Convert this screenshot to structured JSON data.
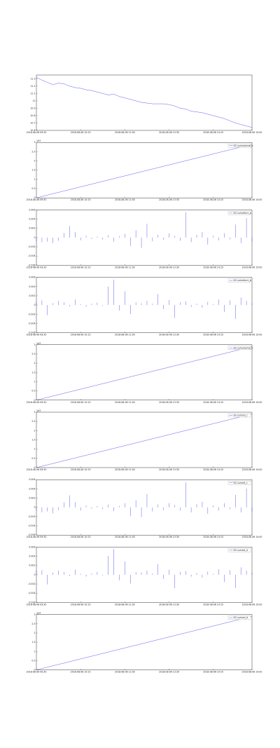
{
  "chart_data": [
    {
      "type": "line",
      "color": "#3333ee",
      "x": [
        0,
        1,
        2,
        3,
        4,
        5,
        6,
        7,
        8,
        9,
        10,
        11,
        12,
        13,
        14,
        15,
        16,
        17,
        18,
        19,
        20,
        21,
        22,
        23,
        24,
        25,
        26,
        27,
        28,
        29,
        30,
        31,
        32,
        33,
        34,
        35,
        36,
        37,
        38,
        39
      ],
      "values": [
        11.32,
        11.28,
        11.25,
        11.22,
        11.24,
        11.23,
        11.2,
        11.18,
        11.17,
        11.15,
        11.14,
        11.12,
        11.1,
        11.08,
        11.09,
        11.06,
        11.04,
        11.02,
        11.0,
        10.98,
        10.97,
        10.96,
        10.96,
        10.96,
        10.95,
        10.93,
        10.9,
        10.89,
        10.86,
        10.85,
        10.84,
        10.82,
        10.8,
        10.78,
        10.76,
        10.73,
        10.7,
        10.68,
        10.66,
        10.64
      ],
      "xlim": [
        0,
        39
      ],
      "xticks": [
        {
          "value": 0,
          "label": "2018-08-06 09:30"
        },
        {
          "value": 8,
          "label": "2018-08-06 10:15"
        },
        {
          "value": 16,
          "label": "2018-08-06 11:00"
        },
        {
          "value": 24,
          "label": "2018-08-06 13:30"
        },
        {
          "value": 32,
          "label": "2018-08-06 14:15"
        },
        {
          "value": 39,
          "label": "2018-08-06 15:00"
        }
      ],
      "ylim": [
        10.6,
        11.35
      ],
      "yticks": [
        10.6,
        10.7,
        10.8,
        10.9,
        11.0,
        11.1,
        11.2,
        11.3
      ]
    },
    {
      "type": "line",
      "color": "#3333ee",
      "name": "SG sumvolume_a",
      "offset_text": "1e3",
      "x": [
        0,
        39
      ],
      "values": [
        0,
        2.9
      ],
      "xlim": [
        0,
        39
      ],
      "xticks": [
        {
          "value": 0,
          "label": "2018-08-06 09:30"
        },
        {
          "value": 8,
          "label": "2018-08-06 10:15"
        },
        {
          "value": 16,
          "label": "2018-08-06 11:00"
        },
        {
          "value": 24,
          "label": "2018-08-06 13:30"
        },
        {
          "value": 32,
          "label": "2018-08-06 14:15"
        },
        {
          "value": 39,
          "label": "2018-08-06 15:00"
        }
      ],
      "ylim": [
        0,
        3.0
      ],
      "yticks": [
        0,
        0.5,
        1.0,
        1.5,
        2.0,
        2.5,
        3.0
      ]
    },
    {
      "type": "bar",
      "color": "#3333ee",
      "name": "SG sumreturn_a",
      "x": [
        0,
        1,
        2,
        3,
        4,
        5,
        6,
        7,
        8,
        9,
        10,
        11,
        12,
        13,
        14,
        15,
        16,
        17,
        18,
        19,
        20,
        21,
        22,
        23,
        24,
        25,
        26,
        27,
        28,
        29,
        30,
        31,
        32,
        33,
        34,
        35,
        36,
        37,
        38,
        39
      ],
      "values": [
        -0.0008,
        -0.001,
        -0.0009,
        -0.0012,
        -0.0007,
        0.001,
        0.0025,
        0.0012,
        -0.0006,
        0.0004,
        -0.0003,
        0.0002,
        -0.0004,
        0.0005,
        -0.0009,
        0.0003,
        0.0008,
        -0.0018,
        0.0016,
        -0.0022,
        0.003,
        -0.0008,
        0.0006,
        -0.0005,
        0.0009,
        0.0004,
        -0.0007,
        0.0055,
        -0.001,
        0.0006,
        0.0012,
        -0.0015,
        0.0004,
        -0.0006,
        0.0009,
        -0.0004,
        0.0028,
        -0.0012,
        0.0042,
        -0.0009
      ],
      "xlim": [
        0,
        39
      ],
      "xticks": [
        {
          "value": 0,
          "label": "2018-08-06 09:30"
        },
        {
          "value": 8,
          "label": "2018-08-06 10:15"
        },
        {
          "value": 16,
          "label": "2018-08-06 11:00"
        },
        {
          "value": 24,
          "label": "2018-08-06 13:30"
        },
        {
          "value": 32,
          "label": "2018-08-06 14:15"
        },
        {
          "value": 39,
          "label": "2018-08-06 15:00"
        }
      ],
      "ylim": [
        -0.006,
        0.006
      ],
      "yticks": [
        -0.006,
        -0.004,
        -0.002,
        0,
        0.002,
        0.004,
        0.006
      ]
    },
    {
      "type": "bar",
      "color": "#3333ee",
      "name": "SG sumreturn_b",
      "x": [
        0,
        1,
        2,
        3,
        4,
        5,
        6,
        7,
        8,
        9,
        10,
        11,
        12,
        13,
        14,
        15,
        16,
        17,
        18,
        19,
        20,
        21,
        22,
        23,
        24,
        25,
        26,
        27,
        28,
        29,
        30,
        31,
        32,
        33,
        34,
        35,
        36,
        37,
        38,
        39
      ],
      "values": [
        0.0008,
        0.001,
        -0.0022,
        0.0004,
        0.0009,
        0.0006,
        -0.0003,
        0.0012,
        0.0002,
        -0.0004,
        0.0003,
        0.0005,
        -0.0002,
        0.004,
        0.0055,
        -0.0012,
        0.003,
        -0.002,
        0.0006,
        0.0004,
        0.0009,
        0.0003,
        0.0024,
        -0.0009,
        0.0011,
        -0.0028,
        0.0006,
        0.0008,
        -0.0004,
        0.0003,
        -0.0006,
        0.0007,
        0.0002,
        0.0012,
        -0.0015,
        0.001,
        -0.003,
        0.0016,
        0.0009,
        0.0004
      ],
      "xlim": [
        0,
        39
      ],
      "xticks": [
        {
          "value": 0,
          "label": "2018-08-06 09:30"
        },
        {
          "value": 8,
          "label": "2018-08-06 10:15"
        },
        {
          "value": 16,
          "label": "2018-08-06 11:00"
        },
        {
          "value": 24,
          "label": "2018-08-06 13:30"
        },
        {
          "value": 32,
          "label": "2018-08-06 14:15"
        },
        {
          "value": 39,
          "label": "2018-08-06 15:00"
        }
      ],
      "ylim": [
        -0.006,
        0.006
      ],
      "yticks": [
        -0.006,
        -0.004,
        -0.002,
        0,
        0.002,
        0.004,
        0.006
      ]
    },
    {
      "type": "line",
      "color": "#3333ee",
      "name": "SG sumvolume_b",
      "offset_text": "1e3",
      "x": [
        0,
        39
      ],
      "values": [
        0,
        2.9
      ],
      "xlim": [
        0,
        39
      ],
      "xticks": [
        {
          "value": 0,
          "label": "2018-08-06 09:30"
        },
        {
          "value": 8,
          "label": "2018-08-06 10:15"
        },
        {
          "value": 16,
          "label": "2018-08-06 11:00"
        },
        {
          "value": 24,
          "label": "2018-08-06 13:30"
        },
        {
          "value": 32,
          "label": "2018-08-06 14:15"
        },
        {
          "value": 39,
          "label": "2018-08-06 15:00"
        }
      ],
      "ylim": [
        0,
        3.0
      ],
      "yticks": [
        0,
        0.5,
        1.0,
        1.5,
        2.0,
        2.5,
        3.0
      ]
    },
    {
      "type": "line",
      "color": "#3333ee",
      "name": "SG sumvol_c",
      "offset_text": "1e3",
      "x": [
        0,
        39
      ],
      "values": [
        0,
        2.9
      ],
      "xlim": [
        0,
        39
      ],
      "xticks": [
        {
          "value": 0,
          "label": "2018-08-06 09:30"
        },
        {
          "value": 8,
          "label": "2018-08-06 10:15"
        },
        {
          "value": 16,
          "label": "2018-08-06 11:00"
        },
        {
          "value": 24,
          "label": "2018-08-06 13:30"
        },
        {
          "value": 32,
          "label": "2018-08-06 14:15"
        },
        {
          "value": 39,
          "label": "2018-08-06 15:00"
        }
      ],
      "ylim": [
        0,
        3.0
      ],
      "yticks": [
        0,
        0.5,
        1.0,
        1.5,
        2.0,
        2.5,
        3.0
      ]
    },
    {
      "type": "bar",
      "color": "#3333ee",
      "name": "SG sumret_c",
      "x": [
        0,
        1,
        2,
        3,
        4,
        5,
        6,
        7,
        8,
        9,
        10,
        11,
        12,
        13,
        14,
        15,
        16,
        17,
        18,
        19,
        20,
        21,
        22,
        23,
        24,
        25,
        26,
        27,
        28,
        29,
        30,
        31,
        32,
        33,
        34,
        35,
        36,
        37,
        38,
        39
      ],
      "values": [
        -0.0007,
        -0.0011,
        -0.0009,
        -0.0013,
        -0.0006,
        0.0011,
        0.0026,
        0.0011,
        -0.0007,
        0.0004,
        -0.0003,
        0.0003,
        -0.0004,
        0.0006,
        -0.0008,
        0.0003,
        0.0009,
        -0.0019,
        0.0015,
        -0.0021,
        0.0029,
        -0.0009,
        0.0006,
        -0.0006,
        0.0009,
        0.0005,
        -0.0007,
        0.0054,
        -0.0011,
        0.0007,
        0.0012,
        -0.0014,
        0.0004,
        -0.0007,
        0.0009,
        -0.0004,
        0.0027,
        -0.0011,
        0.0041,
        -0.0009
      ],
      "xlim": [
        0,
        39
      ],
      "xticks": [
        {
          "value": 0,
          "label": "2018-08-06 09:30"
        },
        {
          "value": 8,
          "label": "2018-08-06 10:15"
        },
        {
          "value": 16,
          "label": "2018-08-06 11:00"
        },
        {
          "value": 24,
          "label": "2018-08-06 13:30"
        },
        {
          "value": 32,
          "label": "2018-08-06 14:15"
        },
        {
          "value": 39,
          "label": "2018-08-06 15:00"
        }
      ],
      "ylim": [
        -0.006,
        0.006
      ],
      "yticks": [
        -0.006,
        -0.004,
        -0.002,
        0,
        0.002,
        0.004,
        0.006
      ]
    },
    {
      "type": "bar",
      "color": "#3333ee",
      "name": "SG sumret_d",
      "x": [
        0,
        1,
        2,
        3,
        4,
        5,
        6,
        7,
        8,
        9,
        10,
        11,
        12,
        13,
        14,
        15,
        16,
        17,
        18,
        19,
        20,
        21,
        22,
        23,
        24,
        25,
        26,
        27,
        28,
        29,
        30,
        31,
        32,
        33,
        34,
        35,
        36,
        37,
        38,
        39
      ],
      "values": [
        0.0009,
        0.001,
        -0.0021,
        0.0005,
        0.0009,
        0.0006,
        -0.0003,
        0.0011,
        0.0002,
        -0.0004,
        0.0003,
        0.0006,
        -0.0002,
        0.0041,
        0.0056,
        -0.0012,
        0.0029,
        -0.0019,
        0.0006,
        0.0005,
        0.0009,
        0.0003,
        0.0023,
        -0.0009,
        0.0011,
        -0.0029,
        0.0006,
        0.0008,
        -0.0004,
        0.0004,
        -0.0006,
        0.0007,
        0.0002,
        0.0012,
        -0.0016,
        0.001,
        -0.0029,
        0.0016,
        0.0009,
        0.0005
      ],
      "xlim": [
        0,
        39
      ],
      "xticks": [
        {
          "value": 0,
          "label": "2018-08-06 09:30"
        },
        {
          "value": 8,
          "label": "2018-08-06 10:15"
        },
        {
          "value": 16,
          "label": "2018-08-06 11:00"
        },
        {
          "value": 24,
          "label": "2018-08-06 13:30"
        },
        {
          "value": 32,
          "label": "2018-08-06 14:15"
        },
        {
          "value": 39,
          "label": "2018-08-06 15:00"
        }
      ],
      "ylim": [
        -0.006,
        0.006
      ],
      "yticks": [
        -0.006,
        -0.004,
        -0.002,
        0,
        0.002,
        0.004,
        0.006
      ]
    },
    {
      "type": "line",
      "color": "#3333ee",
      "name": "SG sumvol_d",
      "offset_text": "1e3",
      "x": [
        0,
        39
      ],
      "values": [
        0,
        2.9
      ],
      "xlim": [
        0,
        39
      ],
      "xticks": [
        {
          "value": 0,
          "label": "2018-08-06 09:30"
        },
        {
          "value": 8,
          "label": "2018-08-06 10:15"
        },
        {
          "value": 16,
          "label": "2018-08-06 11:00"
        },
        {
          "value": 24,
          "label": "2018-08-06 13:30"
        },
        {
          "value": 32,
          "label": "2018-08-06 14:15"
        },
        {
          "value": 39,
          "label": "2018-08-06 15:00"
        }
      ],
      "ylim": [
        0,
        3.0
      ],
      "yticks": [
        0,
        0.5,
        1.0,
        1.5,
        2.0,
        2.5,
        3.0
      ]
    }
  ]
}
